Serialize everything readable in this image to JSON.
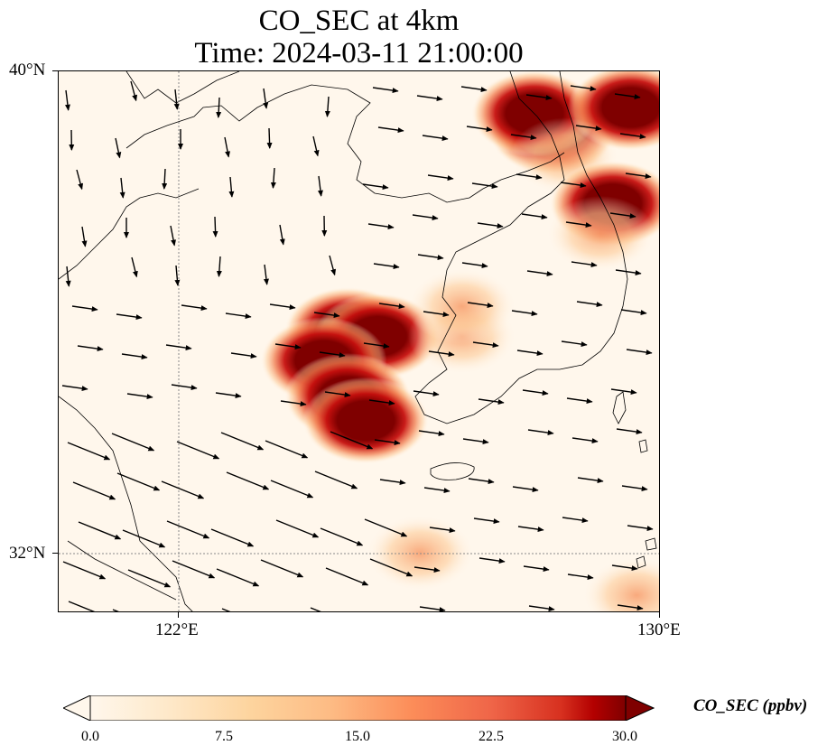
{
  "title_line1": "CO_SEC at 4km",
  "title_line2": "Time: 2024-03-11 21:00:00",
  "lat_labels": {
    "north": "40°N",
    "south": "32°N"
  },
  "lon_labels": {
    "west": "122°E",
    "east": "130°E"
  },
  "colorbar": {
    "label": "CO_SEC (ppbv)",
    "ticks": [
      "0.0",
      "7.5",
      "15.0",
      "22.5",
      "30.0"
    ],
    "colormap": "OrRd",
    "range": [
      0,
      30
    ],
    "extend": "both"
  },
  "map": {
    "extent_lon": [
      120,
      130
    ],
    "extent_lat": [
      31,
      40
    ],
    "gridlines": "dotted at 122°E and 32°N",
    "plumes": [
      {
        "lon": 128.2,
        "lat": 39.0,
        "peak_ppbv": 30
      },
      {
        "lon": 127.9,
        "lat": 39.3,
        "peak_ppbv": 30
      },
      {
        "lon": 129.5,
        "lat": 39.4,
        "peak_ppbv": 30
      },
      {
        "lon": 128.4,
        "lat": 38.6,
        "peak_ppbv": 18
      },
      {
        "lon": 129.2,
        "lat": 37.8,
        "peak_ppbv": 28
      },
      {
        "lon": 129.0,
        "lat": 37.3,
        "peak_ppbv": 14
      },
      {
        "lon": 124.8,
        "lat": 35.7,
        "peak_ppbv": 30
      },
      {
        "lon": 125.3,
        "lat": 35.6,
        "peak_ppbv": 28
      },
      {
        "lon": 124.4,
        "lat": 35.2,
        "peak_ppbv": 30
      },
      {
        "lon": 124.8,
        "lat": 34.6,
        "peak_ppbv": 30
      },
      {
        "lon": 125.1,
        "lat": 34.2,
        "peak_ppbv": 22
      },
      {
        "lon": 126.7,
        "lat": 35.6,
        "peak_ppbv": 16
      },
      {
        "lon": 126.7,
        "lat": 36.1,
        "peak_ppbv": 12
      },
      {
        "lon": 126.0,
        "lat": 32.0,
        "peak_ppbv": 10
      },
      {
        "lon": 129.6,
        "lat": 31.3,
        "peak_ppbv": 10
      }
    ]
  }
}
